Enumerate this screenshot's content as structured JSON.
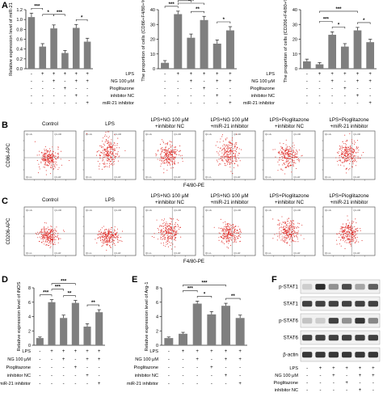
{
  "panel_labels": {
    "A": "A",
    "B": "B",
    "C": "C",
    "D": "D",
    "E": "E",
    "F": "F"
  },
  "colors": {
    "bar": "#7f7f7f",
    "flow_dot": "#e0302c",
    "axis": "#222222"
  },
  "conditions": {
    "row_labels": [
      "LPS",
      "NG 100 μM",
      "Pioglitazone",
      "inhibitor NC",
      "miR-21 inhibitor"
    ],
    "matrix": [
      [
        "-",
        "+",
        "+",
        "+",
        "+",
        "+"
      ],
      [
        "-",
        "-",
        "+",
        "-",
        "+",
        "+"
      ],
      [
        "-",
        "-",
        "-",
        "+",
        "-",
        "-"
      ],
      [
        "-",
        "-",
        "-",
        "-",
        "+",
        "-"
      ],
      [
        "-",
        "-",
        "-",
        "-",
        "-",
        "+"
      ]
    ]
  },
  "chart_data": [
    {
      "id": "A1",
      "type": "bar",
      "ylabel": "Relative expression level of miR-21",
      "ylim": [
        0,
        1.2
      ],
      "yticks": [
        "0.0",
        "0.2",
        "0.4",
        "0.6",
        "0.8",
        "1.0",
        "1.2"
      ],
      "values": [
        1.05,
        0.45,
        0.82,
        0.32,
        0.83,
        0.55
      ],
      "errors": [
        0.08,
        0.06,
        0.07,
        0.05,
        0.07,
        0.07
      ],
      "sig": [
        {
          "a": 0,
          "b": 1,
          "t": "***",
          "lvl": 0
        },
        {
          "a": 0,
          "b": 4,
          "t": "**",
          "lvl": 2
        },
        {
          "a": 1,
          "b": 2,
          "t": "*",
          "lvl": 1
        },
        {
          "a": 2,
          "b": 3,
          "t": "***",
          "lvl": 1
        },
        {
          "a": 4,
          "b": 5,
          "t": "*",
          "lvl": 0
        }
      ]
    },
    {
      "id": "A2",
      "type": "bar",
      "ylabel": "The proportion of cells (CD86+F4/80+%)",
      "ylim": [
        0,
        40
      ],
      "yticks": [
        "0",
        "10",
        "20",
        "30",
        "40"
      ],
      "values": [
        4,
        37,
        21,
        33,
        17,
        26
      ],
      "errors": [
        1.5,
        2,
        2.5,
        2.5,
        2.5,
        2.5
      ],
      "sig": [
        {
          "a": 0,
          "b": 1,
          "t": "***",
          "lvl": 0
        },
        {
          "a": 1,
          "b": 2,
          "t": "***",
          "lvl": 1
        },
        {
          "a": 1,
          "b": 3,
          "t": "***",
          "lvl": 2
        },
        {
          "a": 2,
          "b": 3,
          "t": "**",
          "lvl": 0
        },
        {
          "a": 4,
          "b": 5,
          "t": "*",
          "lvl": 0
        }
      ]
    },
    {
      "id": "A3",
      "type": "bar",
      "ylabel": "The proportion of cells (CD206+F4/80+%)",
      "ylim": [
        0,
        40
      ],
      "yticks": [
        "0",
        "10",
        "20",
        "30",
        "40"
      ],
      "values": [
        5,
        3,
        23,
        15,
        26,
        18
      ],
      "errors": [
        1.5,
        1.2,
        2,
        2,
        2,
        2
      ],
      "sig": [
        {
          "a": 1,
          "b": 2,
          "t": "***",
          "lvl": 1
        },
        {
          "a": 1,
          "b": 4,
          "t": "***",
          "lvl": 2
        },
        {
          "a": 2,
          "b": 3,
          "t": "*",
          "lvl": 0
        },
        {
          "a": 4,
          "b": 5,
          "t": "*",
          "lvl": 0
        }
      ]
    },
    {
      "id": "D",
      "type": "bar",
      "ylabel": "Relative expression level of iNOS",
      "ylim": [
        0,
        8
      ],
      "yticks": [
        "0",
        "2",
        "4",
        "6",
        "8"
      ],
      "values": [
        1,
        6,
        3.8,
        5.9,
        2.6,
        4.6
      ],
      "errors": [
        0.15,
        0.35,
        0.4,
        0.35,
        0.4,
        0.35
      ],
      "sig": [
        {
          "a": 0,
          "b": 1,
          "t": "***",
          "lvl": 0
        },
        {
          "a": 1,
          "b": 2,
          "t": "***",
          "lvl": 1
        },
        {
          "a": 1,
          "b": 3,
          "t": "***",
          "lvl": 2
        },
        {
          "a": 2,
          "b": 3,
          "t": "**",
          "lvl": 0
        },
        {
          "a": 4,
          "b": 5,
          "t": "**",
          "lvl": 0
        }
      ]
    },
    {
      "id": "E",
      "type": "bar",
      "ylabel": "Relative expression level of Arg-1",
      "ylim": [
        0,
        8
      ],
      "yticks": [
        "0",
        "2",
        "4",
        "6",
        "8"
      ],
      "values": [
        1,
        1.6,
        5.8,
        4.3,
        5.5,
        3.8
      ],
      "errors": [
        0.15,
        0.2,
        0.35,
        0.4,
        0.35,
        0.4
      ],
      "sig": [
        {
          "a": 1,
          "b": 2,
          "t": "***",
          "lvl": 1
        },
        {
          "a": 1,
          "b": 4,
          "t": "***",
          "lvl": 2
        },
        {
          "a": 2,
          "b": 3,
          "t": "*",
          "lvl": 0
        },
        {
          "a": 4,
          "b": 5,
          "t": "**",
          "lvl": 0
        }
      ]
    }
  ],
  "flow": {
    "B_titles": [
      "Control",
      "LPS",
      "LPS+NG 100 μM\n+inhibitor NC",
      "LPS+NG 100 μM\n+miR-21 inhibitor",
      "LPS+Pioglitazone\n+inhibitor NC",
      "LPS+Pioglitazone\n+miR-21 inhibitor"
    ],
    "C_titles": [
      "Control",
      "LPS",
      "LPS+NG 100 μM\n+inhibitor NC",
      "LPS+NG 100 μM\n+miR-21 inhibitor",
      "LPS+Pioglitazone\n+inhibitor NC",
      "LPS+Pioglitazone\n+miR-21 inhibitor"
    ],
    "B_ylabel": "CD86-APC",
    "C_ylabel": "CD206-APC",
    "xlabel": "F4/80-PE",
    "quad_labels": [
      "Q1-UL",
      "Q1-UR",
      "Q1-LL",
      "Q1-LR"
    ],
    "B_spread": [
      0.2,
      0.75,
      0.45,
      0.65,
      0.4,
      0.55
    ],
    "C_spread": [
      0.1,
      0.05,
      0.45,
      0.3,
      0.5,
      0.35
    ]
  },
  "western": {
    "bands": [
      "p-STAT1",
      "STAT1",
      "p-STAT6",
      "STAT6",
      "β-actin"
    ],
    "intensity": [
      [
        0.15,
        0.95,
        0.45,
        0.8,
        0.35,
        0.7
      ],
      [
        0.85,
        0.85,
        0.85,
        0.85,
        0.85,
        0.85
      ],
      [
        0.2,
        0.15,
        0.85,
        0.45,
        0.9,
        0.5
      ],
      [
        0.85,
        0.85,
        0.85,
        0.85,
        0.85,
        0.85
      ],
      [
        0.9,
        0.9,
        0.9,
        0.9,
        0.9,
        0.9
      ]
    ]
  }
}
